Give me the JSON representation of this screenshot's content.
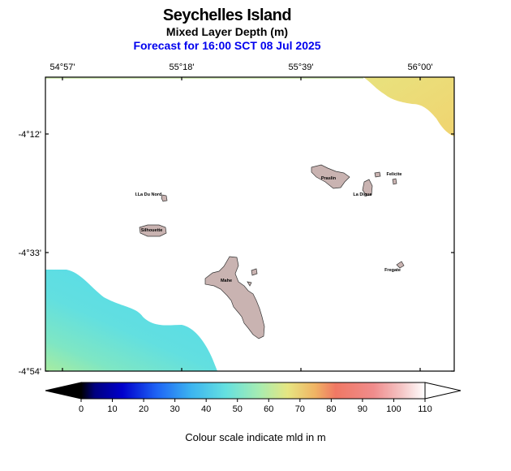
{
  "header": {
    "title": "Seychelles Island",
    "subtitle": "Mixed Layer Depth (m)",
    "forecast": "Forecast for  16:00 SCT 08 Jul 2025"
  },
  "axes": {
    "lon_ticks": [
      "54°57'",
      "55°18'",
      "55°39'",
      "56°00'"
    ],
    "lat_ticks": [
      "-4°12'",
      "-4°33'",
      "-4°54'"
    ]
  },
  "islands": {
    "praslin": "Praslin",
    "felicite": "Felicite",
    "la_digue": "La Digue",
    "ile_du_nord": "I.La Du Nord",
    "silhouette": "Silhouette",
    "fregate": "Fregate",
    "mahe": "Mahe"
  },
  "colorbar": {
    "ticks": [
      "0",
      "10",
      "20",
      "30",
      "40",
      "50",
      "60",
      "70",
      "80",
      "90",
      "100",
      "110"
    ],
    "caption": "Colour scale indicate mld in m",
    "min": 0,
    "max": 110,
    "stops": [
      "#000000",
      "#000080",
      "#0000d8",
      "#1e64f5",
      "#3cb4f0",
      "#64e0e0",
      "#a8ecb0",
      "#e6e682",
      "#f0b464",
      "#f07864",
      "#f08c8c",
      "#f0c0c0",
      "#ffffff"
    ]
  },
  "colors": {
    "land": "#c9b3b1",
    "ocean": "#ffffff",
    "shallow_mld": "#5edde4",
    "deep_mld": "#ecd673"
  }
}
